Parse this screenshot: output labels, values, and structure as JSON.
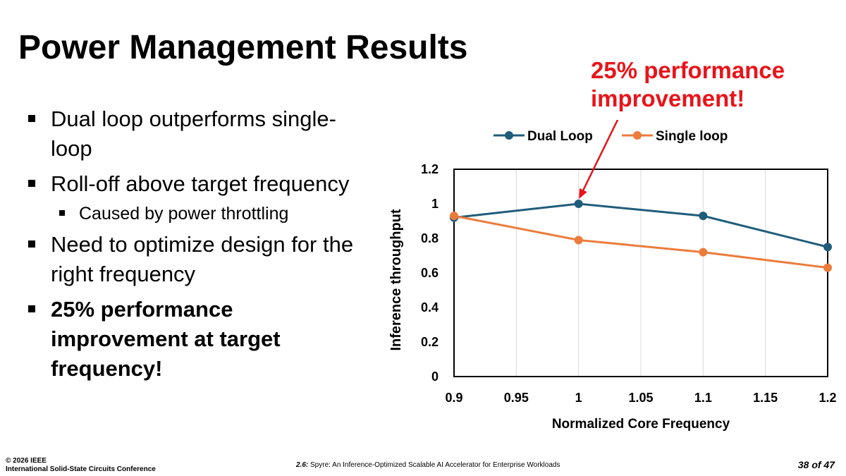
{
  "slide": {
    "title": "Power Management Results",
    "bullets": [
      {
        "text": "Dual loop outperforms single-loop",
        "level": 1,
        "bold": false
      },
      {
        "text": "Roll-off above target frequency",
        "level": 1,
        "bold": false
      },
      {
        "text": "Caused by power throttling",
        "level": 2,
        "bold": false
      },
      {
        "text": "Need to optimize design for the right frequency",
        "level": 1,
        "bold": false
      },
      {
        "text": "25% performance improvement at target frequency!",
        "level": 1,
        "bold": true
      }
    ],
    "callout": {
      "line1": "25% performance",
      "line2": "improvement!"
    }
  },
  "footer": {
    "copyright": "© 2026 IEEE",
    "conference": "International Solid-State Circuits Conference",
    "session": "2.6:",
    "paper_title": "Spyre: An Inference-Optimized Scalable AI Accelerator for Enterprise Workloads",
    "page": "38 of 47"
  },
  "colors": {
    "dual_loop": "#1f5d7a",
    "single_loop": "#ec7c3c",
    "callout": "#e8141a"
  },
  "chart_data": {
    "type": "line",
    "title": "",
    "xlabel": "Normalized Core Frequency",
    "ylabel": "Inference throughput",
    "xlim": [
      0.9,
      1.2
    ],
    "ylim": [
      0,
      1.2
    ],
    "x_ticks": [
      0.9,
      0.95,
      1,
      1.05,
      1.1,
      1.15,
      1.2
    ],
    "x_tick_labels": [
      "0.9",
      "0.95",
      "1",
      "1.05",
      "1.1",
      "1.15",
      "1.2"
    ],
    "y_ticks": [
      0,
      0.2,
      0.4,
      0.6,
      0.8,
      1,
      1.2
    ],
    "y_tick_labels": [
      "0",
      "0.2",
      "0.4",
      "0.6",
      "0.8",
      "1",
      "1.2"
    ],
    "grid": true,
    "legend_position": "top",
    "annotation_point": {
      "series": "Dual Loop",
      "x": 1,
      "y": 1.0
    },
    "series": [
      {
        "name": "Dual Loop",
        "x": [
          0.9,
          1.0,
          1.1,
          1.2
        ],
        "y": [
          0.92,
          1.0,
          0.93,
          0.75
        ]
      },
      {
        "name": "Single loop",
        "x": [
          0.9,
          1.0,
          1.1,
          1.2
        ],
        "y": [
          0.93,
          0.79,
          0.72,
          0.63
        ]
      }
    ]
  }
}
